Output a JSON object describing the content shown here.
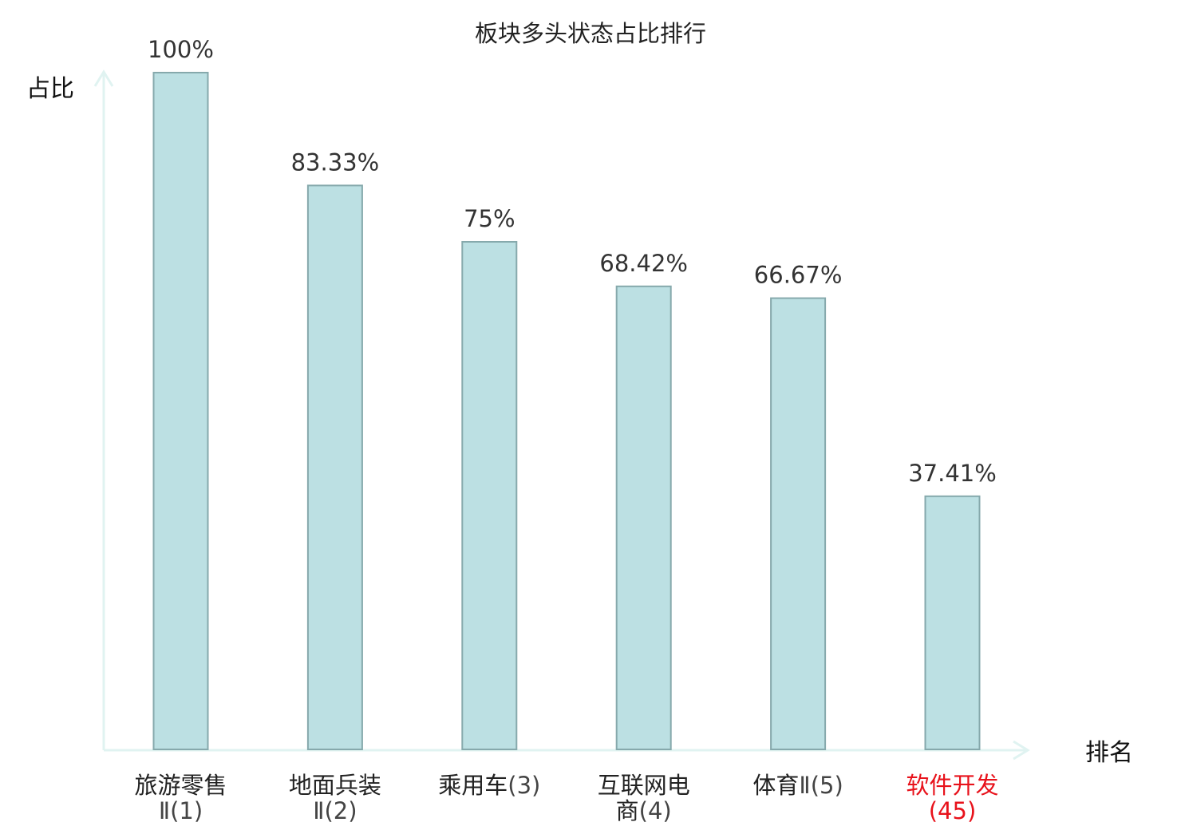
{
  "chart_data": {
    "type": "bar",
    "title": "板块多头状态占比排行",
    "ylabel": "占比",
    "xlabel": "排名",
    "categories": [
      {
        "name": "旅游零售",
        "code": "Ⅱ(1)",
        "value_label": "100%"
      },
      {
        "name": "地面兵装",
        "code": "Ⅱ(2)",
        "value_label": "83.33%"
      },
      {
        "name": "乘用车",
        "code": "(3)",
        "value_label": "75%"
      },
      {
        "name": "互联网电",
        "name2": "商",
        "code": "(4)",
        "value_label": "68.42%"
      },
      {
        "name": "体育",
        "code": "Ⅱ(5)",
        "value_label": "66.67%"
      },
      {
        "name": "软件开发",
        "code": "(45)",
        "value_label": "37.41%",
        "highlight": true
      }
    ],
    "values": [
      100,
      83.33,
      75,
      68.42,
      66.67,
      37.41
    ],
    "ylim": [
      0,
      100
    ],
    "grid": false,
    "legend": "none",
    "colors": {
      "bar_fill": "#bce0e3",
      "bar_stroke": "#86a9ac",
      "axis": "#e0f3f1",
      "highlight_text": "#e8121b"
    }
  }
}
